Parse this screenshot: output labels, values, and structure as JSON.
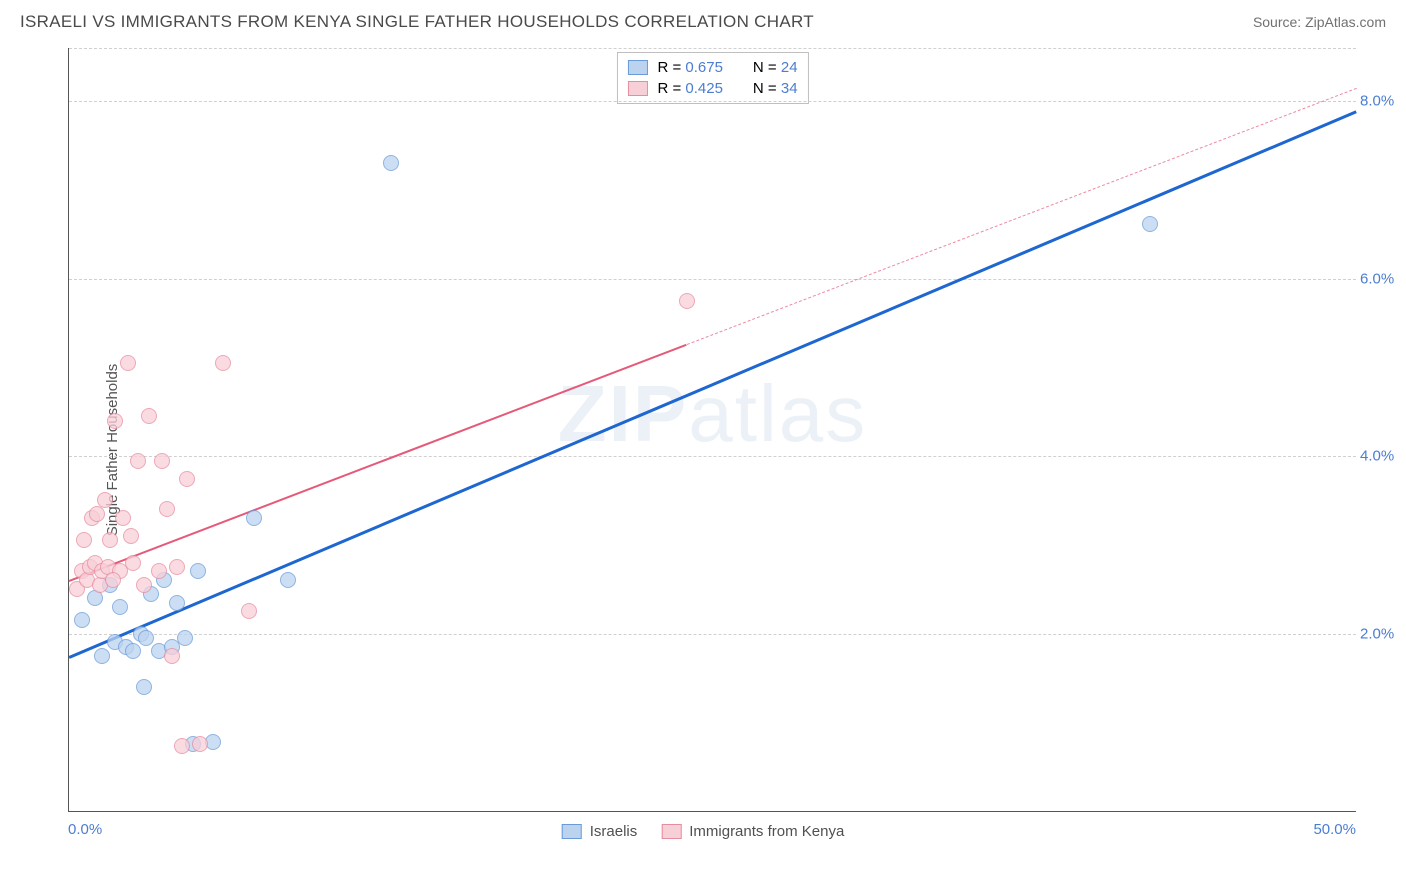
{
  "header": {
    "title": "ISRAELI VS IMMIGRANTS FROM KENYA SINGLE FATHER HOUSEHOLDS CORRELATION CHART",
    "source_prefix": "Source: ",
    "source_name": "ZipAtlas.com"
  },
  "chart": {
    "type": "scatter",
    "y_label": "Single Father Households",
    "watermark": {
      "bold": "ZIP",
      "rest": "atlas"
    },
    "x_min": 0,
    "x_max": 50,
    "y_min": 0,
    "y_max": 8.6,
    "x_ticks": [
      {
        "value": 0,
        "label": "0.0%",
        "anchor": "start"
      },
      {
        "value": 50,
        "label": "50.0%",
        "anchor": "end"
      }
    ],
    "y_gridlines": [
      {
        "value": 2,
        "label": "2.0%"
      },
      {
        "value": 4,
        "label": "4.0%"
      },
      {
        "value": 6,
        "label": "6.0%"
      },
      {
        "value": 8,
        "label": "8.0%"
      }
    ],
    "grid_color": "#d0d0d0",
    "axis_color": "#555555",
    "tick_color": "#4b7dd1",
    "background_color": "#ffffff",
    "series": [
      {
        "name": "Israelis",
        "color_fill": "#bcd3ef",
        "color_stroke": "#6a9bd8",
        "r": "0.675",
        "n": "24",
        "trend": {
          "x1": 0,
          "y1": 1.75,
          "x2": 50,
          "y2": 7.9,
          "color": "#1e66d0",
          "width": 2.5,
          "solid_to_x": 50
        },
        "points": [
          [
            0.5,
            2.15
          ],
          [
            1.0,
            2.4
          ],
          [
            1.3,
            1.75
          ],
          [
            1.8,
            1.9
          ],
          [
            2.0,
            2.3
          ],
          [
            2.2,
            1.85
          ],
          [
            2.5,
            1.8
          ],
          [
            2.8,
            2.0
          ],
          [
            3.0,
            1.95
          ],
          [
            3.2,
            2.45
          ],
          [
            3.5,
            1.8
          ],
          [
            3.7,
            2.6
          ],
          [
            4.0,
            1.85
          ],
          [
            4.5,
            1.95
          ],
          [
            5.0,
            2.7
          ],
          [
            4.2,
            2.35
          ],
          [
            2.9,
            1.4
          ],
          [
            4.8,
            0.75
          ],
          [
            5.6,
            0.78
          ],
          [
            7.2,
            3.3
          ],
          [
            8.5,
            2.6
          ],
          [
            12.5,
            7.3
          ],
          [
            42.0,
            6.62
          ],
          [
            1.6,
            2.55
          ]
        ]
      },
      {
        "name": "Immigrants from Kenya",
        "color_fill": "#f7cfd7",
        "color_stroke": "#e88ca0",
        "r": "0.425",
        "n": "34",
        "trend": {
          "x1": 0,
          "y1": 2.6,
          "x2": 50,
          "y2": 8.15,
          "color": "#e45a78",
          "width": 2.2,
          "solid_to_x": 24
        },
        "points": [
          [
            0.3,
            2.5
          ],
          [
            0.5,
            2.7
          ],
          [
            0.6,
            3.05
          ],
          [
            0.7,
            2.6
          ],
          [
            0.8,
            2.75
          ],
          [
            0.9,
            3.3
          ],
          [
            1.0,
            2.8
          ],
          [
            1.1,
            3.35
          ],
          [
            1.2,
            2.55
          ],
          [
            1.3,
            2.7
          ],
          [
            1.4,
            3.5
          ],
          [
            1.5,
            2.75
          ],
          [
            1.6,
            3.05
          ],
          [
            1.8,
            4.4
          ],
          [
            2.0,
            2.7
          ],
          [
            2.1,
            3.3
          ],
          [
            2.3,
            5.05
          ],
          [
            2.5,
            2.8
          ],
          [
            2.7,
            3.95
          ],
          [
            2.9,
            2.55
          ],
          [
            3.1,
            4.45
          ],
          [
            3.5,
            2.7
          ],
          [
            3.6,
            3.95
          ],
          [
            4.0,
            1.75
          ],
          [
            4.2,
            2.75
          ],
          [
            4.4,
            0.73
          ],
          [
            4.6,
            3.74
          ],
          [
            5.1,
            0.75
          ],
          [
            6.0,
            5.05
          ],
          [
            7.0,
            2.25
          ],
          [
            3.8,
            3.4
          ],
          [
            1.7,
            2.6
          ],
          [
            2.4,
            3.1
          ],
          [
            24.0,
            5.75
          ]
        ]
      }
    ],
    "legend_top": {
      "rows": [
        {
          "swatch_fill": "#bcd3ef",
          "swatch_stroke": "#6a9bd8",
          "r_label": "R = ",
          "r_val": "0.675",
          "n_label": "N = ",
          "n_val": "24"
        },
        {
          "swatch_fill": "#f7cfd7",
          "swatch_stroke": "#e88ca0",
          "r_label": "R = ",
          "r_val": "0.425",
          "n_label": "N = ",
          "n_val": "34"
        }
      ]
    },
    "legend_bottom": [
      {
        "swatch_fill": "#bcd3ef",
        "swatch_stroke": "#6a9bd8",
        "label": "Israelis"
      },
      {
        "swatch_fill": "#f7cfd7",
        "swatch_stroke": "#e88ca0",
        "label": "Immigrants from Kenya"
      }
    ]
  }
}
